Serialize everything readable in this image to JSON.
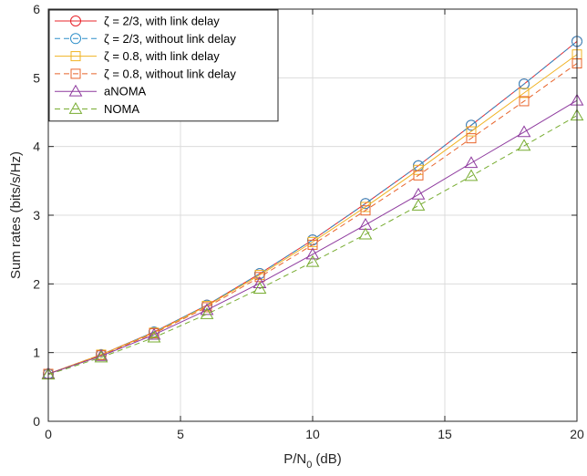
{
  "chart_data": {
    "type": "line",
    "xlabel": "P/N",
    "xlabel_sub": "0",
    "xlabel_unit": "(dB)",
    "ylabel": "Sum rates (bits/s/Hz)",
    "xlim": [
      0,
      20
    ],
    "ylim": [
      0,
      6
    ],
    "xticks": [
      0,
      5,
      10,
      15,
      20
    ],
    "yticks": [
      0,
      1,
      2,
      3,
      4,
      5,
      6
    ],
    "grid": true,
    "legend_position": "top-left",
    "x": [
      0,
      2,
      4,
      6,
      8,
      10,
      12,
      14,
      16,
      18,
      20
    ],
    "series": [
      {
        "name": "ζ = 2/3, with link delay",
        "color": "#e8242b",
        "dash": "solid",
        "marker": "circle",
        "values": [
          0.69,
          0.97,
          1.3,
          1.69,
          2.15,
          2.64,
          3.17,
          3.72,
          4.31,
          4.91,
          5.53
        ]
      },
      {
        "name": "ζ = 2/3, without link delay",
        "color": "#2e8fc9",
        "dash": "dashed",
        "marker": "circle",
        "values": [
          0.69,
          0.97,
          1.3,
          1.69,
          2.15,
          2.64,
          3.17,
          3.72,
          4.31,
          4.91,
          5.53
        ]
      },
      {
        "name": "ζ = 0.8, with link delay",
        "color": "#f0b323",
        "dash": "solid",
        "marker": "square",
        "values": [
          0.69,
          0.97,
          1.29,
          1.68,
          2.13,
          2.61,
          3.12,
          3.66,
          4.22,
          4.78,
          5.34
        ]
      },
      {
        "name": "ζ = 0.8, without link delay",
        "color": "#e8642b",
        "dash": "dashed",
        "marker": "square",
        "values": [
          0.69,
          0.96,
          1.28,
          1.66,
          2.1,
          2.57,
          3.07,
          3.58,
          4.12,
          4.66,
          5.21
        ]
      },
      {
        "name": "aNOMA",
        "color": "#8e3a9e",
        "dash": "solid",
        "marker": "triangle",
        "values": [
          0.69,
          0.95,
          1.26,
          1.62,
          2.01,
          2.43,
          2.86,
          3.3,
          3.76,
          4.21,
          4.67
        ]
      },
      {
        "name": "NOMA",
        "color": "#77ac30",
        "dash": "dashed",
        "marker": "triangle",
        "values": [
          0.68,
          0.93,
          1.22,
          1.56,
          1.93,
          2.32,
          2.72,
          3.14,
          3.57,
          4.01,
          4.45
        ]
      }
    ]
  }
}
